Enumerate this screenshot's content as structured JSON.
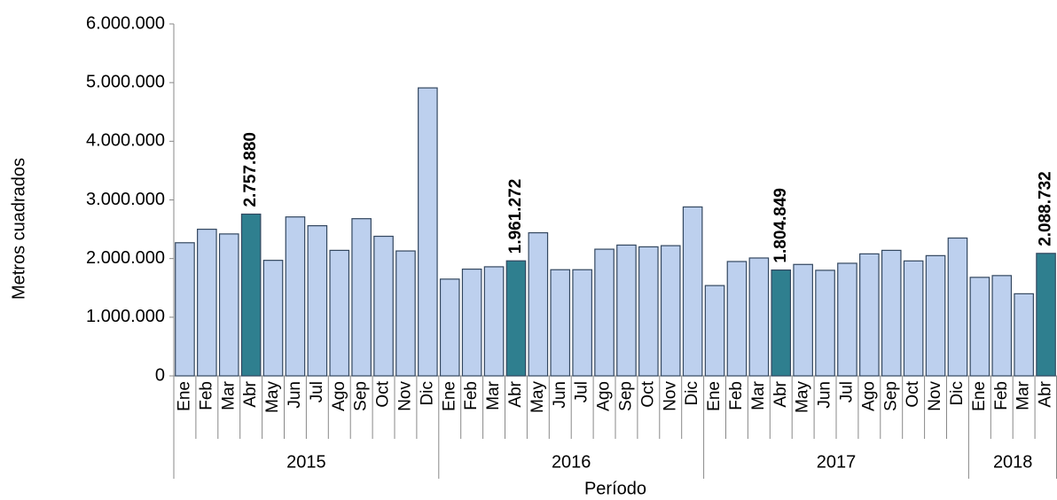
{
  "chart_data": {
    "type": "bar",
    "y_label": "Metros cuadrados",
    "x_label": "Período",
    "groups": [
      {
        "label": "2015",
        "categories": [
          "Ene",
          "Feb",
          "Mar",
          "Abr",
          "May",
          "Jun",
          "Jul",
          "Ago",
          "Sep",
          "Oct",
          "Nov",
          "Dic"
        ]
      },
      {
        "label": "2016",
        "categories": [
          "Ene",
          "Feb",
          "Mar",
          "Abr",
          "May",
          "Jun",
          "Jul",
          "Ago",
          "Sep",
          "Oct",
          "Nov",
          "Dic"
        ]
      },
      {
        "label": "2017",
        "categories": [
          "Ene",
          "Feb",
          "Mar",
          "Abr",
          "May",
          "Jun",
          "Jul",
          "Ago",
          "Sep",
          "Oct",
          "Nov",
          "Dic"
        ]
      },
      {
        "label": "2018",
        "categories": [
          "Ene",
          "Feb",
          "Mar",
          "Abr"
        ]
      }
    ],
    "values": [
      2270000,
      2500000,
      2420000,
      2757880,
      1970000,
      2710000,
      2560000,
      2140000,
      2680000,
      2380000,
      2130000,
      4910000,
      1650000,
      1820000,
      1860000,
      1961272,
      2440000,
      1810000,
      1810000,
      2160000,
      2230000,
      2200000,
      2220000,
      2880000,
      1540000,
      1950000,
      2010000,
      1804849,
      1900000,
      1800000,
      1920000,
      2080000,
      2140000,
      1960000,
      2050000,
      2350000,
      1680000,
      1710000,
      1400000,
      2088732
    ],
    "value_labels": [
      null,
      null,
      null,
      "2.757.880",
      null,
      null,
      null,
      null,
      null,
      null,
      null,
      null,
      null,
      null,
      null,
      "1.961.272",
      null,
      null,
      null,
      null,
      null,
      null,
      null,
      null,
      null,
      null,
      null,
      "1.804.849",
      null,
      null,
      null,
      null,
      null,
      null,
      null,
      null,
      null,
      null,
      null,
      "2.088.732"
    ],
    "color": "#bdd0ee",
    "highlight_color": "#2f7f8f",
    "label_color": "#2c6b7a",
    "ylim": [
      0,
      6000000
    ],
    "yticks": [
      0,
      {
        "value": 1000000,
        "label": "1.000.000"
      },
      {
        "value": 2000000,
        "label": "2.000.000"
      },
      {
        "value": 3000000,
        "label": "3.000.000"
      },
      {
        "value": 4000000,
        "label": "4.000.000"
      },
      {
        "value": 5000000,
        "label": "5.000.000"
      },
      {
        "value": 6000000,
        "label": "6.000.000"
      }
    ]
  }
}
